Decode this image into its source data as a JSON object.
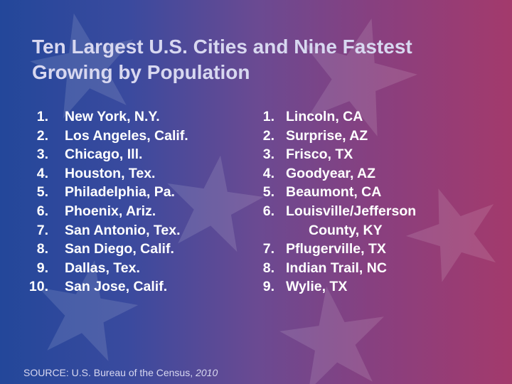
{
  "title_line1": "Ten Largest U.S. Cities and Nine Fastest",
  "title_line2": "Growing by Population",
  "largest": [
    {
      "num": "1.",
      "city": "New York, N.Y."
    },
    {
      "num": "2.",
      "city": "Los Angeles, Calif."
    },
    {
      "num": "3.",
      "city": "Chicago, Ill."
    },
    {
      "num": "4.",
      "city": "Houston, Tex."
    },
    {
      "num": "5.",
      "city": "Philadelphia, Pa."
    },
    {
      "num": "6.",
      "city": "Phoenix, Ariz."
    },
    {
      "num": "7.",
      "city": "San Antonio, Tex."
    },
    {
      "num": "8.",
      "city": "San Diego, Calif."
    },
    {
      "num": "9.",
      "city": "Dallas, Tex."
    },
    {
      "num": "10.",
      "city": "San Jose, Calif."
    }
  ],
  "fastest": [
    {
      "num": "1.",
      "city": "Lincoln, CA"
    },
    {
      "num": "2.",
      "city": "Surprise, AZ"
    },
    {
      "num": "3.",
      "city": "Frisco, TX"
    },
    {
      "num": "4.",
      "city": "Goodyear, AZ"
    },
    {
      "num": "5.",
      "city": "Beaumont, CA"
    },
    {
      "num": "6.",
      "city": "Louisville/Jefferson",
      "continuation": "County, KY"
    },
    {
      "num": "7.",
      "city": "Pflugerville, TX"
    },
    {
      "num": "8.",
      "city": "Indian Trail, NC"
    },
    {
      "num": "9.",
      "city": "Wylie, TX"
    }
  ],
  "source_label": "SOURCE:  U.S. Bureau of the Census,",
  "source_year": "2010",
  "colors": {
    "bg_left": "#23479a",
    "bg_right": "#a33a6c",
    "title": "#d8d8f0",
    "text": "#ffffff",
    "star": "#ffffff"
  }
}
